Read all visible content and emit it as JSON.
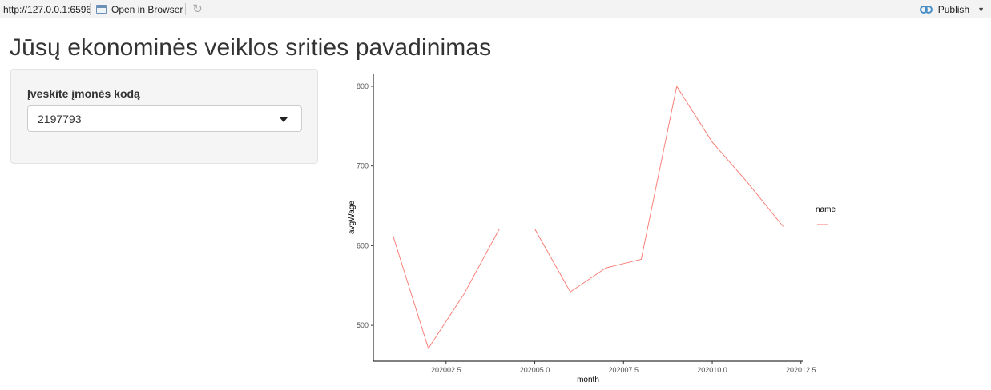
{
  "toolbar": {
    "url": "http://127.0.0.1:6596",
    "open_in_browser": "Open in Browser",
    "publish": "Publish"
  },
  "page": {
    "title": "Jūsų ekonominės veiklos srities pavadinimas"
  },
  "sidebar": {
    "select_label": "Įveskite įmonės kodą",
    "selected_value": "2197793"
  },
  "colors": {
    "line": "#f8766d"
  },
  "chart_data": {
    "type": "line",
    "title": "",
    "xlabel": "month",
    "ylabel": "avgWage",
    "xlim": [
      202000.45,
      202012.55
    ],
    "ylim": [
      455,
      816
    ],
    "x_ticks": [
      202002.5,
      202005.0,
      202007.5,
      202010.0,
      202012.5
    ],
    "x_tick_labels": [
      "202002.5",
      "202005.0",
      "202007.5",
      "202010.0",
      "202012.5"
    ],
    "y_ticks": [
      500,
      600,
      700,
      800
    ],
    "y_tick_labels": [
      "500",
      "600",
      "700",
      "800"
    ],
    "legend": {
      "title": "name",
      "placement": "right"
    },
    "grid": false,
    "series": [
      {
        "x": [
          202001,
          202002,
          202003,
          202004,
          202005,
          202006,
          202007,
          202008,
          202009,
          202010,
          202011,
          202012
        ],
        "y": [
          613,
          471,
          539,
          621,
          621,
          542,
          572,
          583,
          800,
          730,
          679,
          624
        ]
      }
    ]
  }
}
